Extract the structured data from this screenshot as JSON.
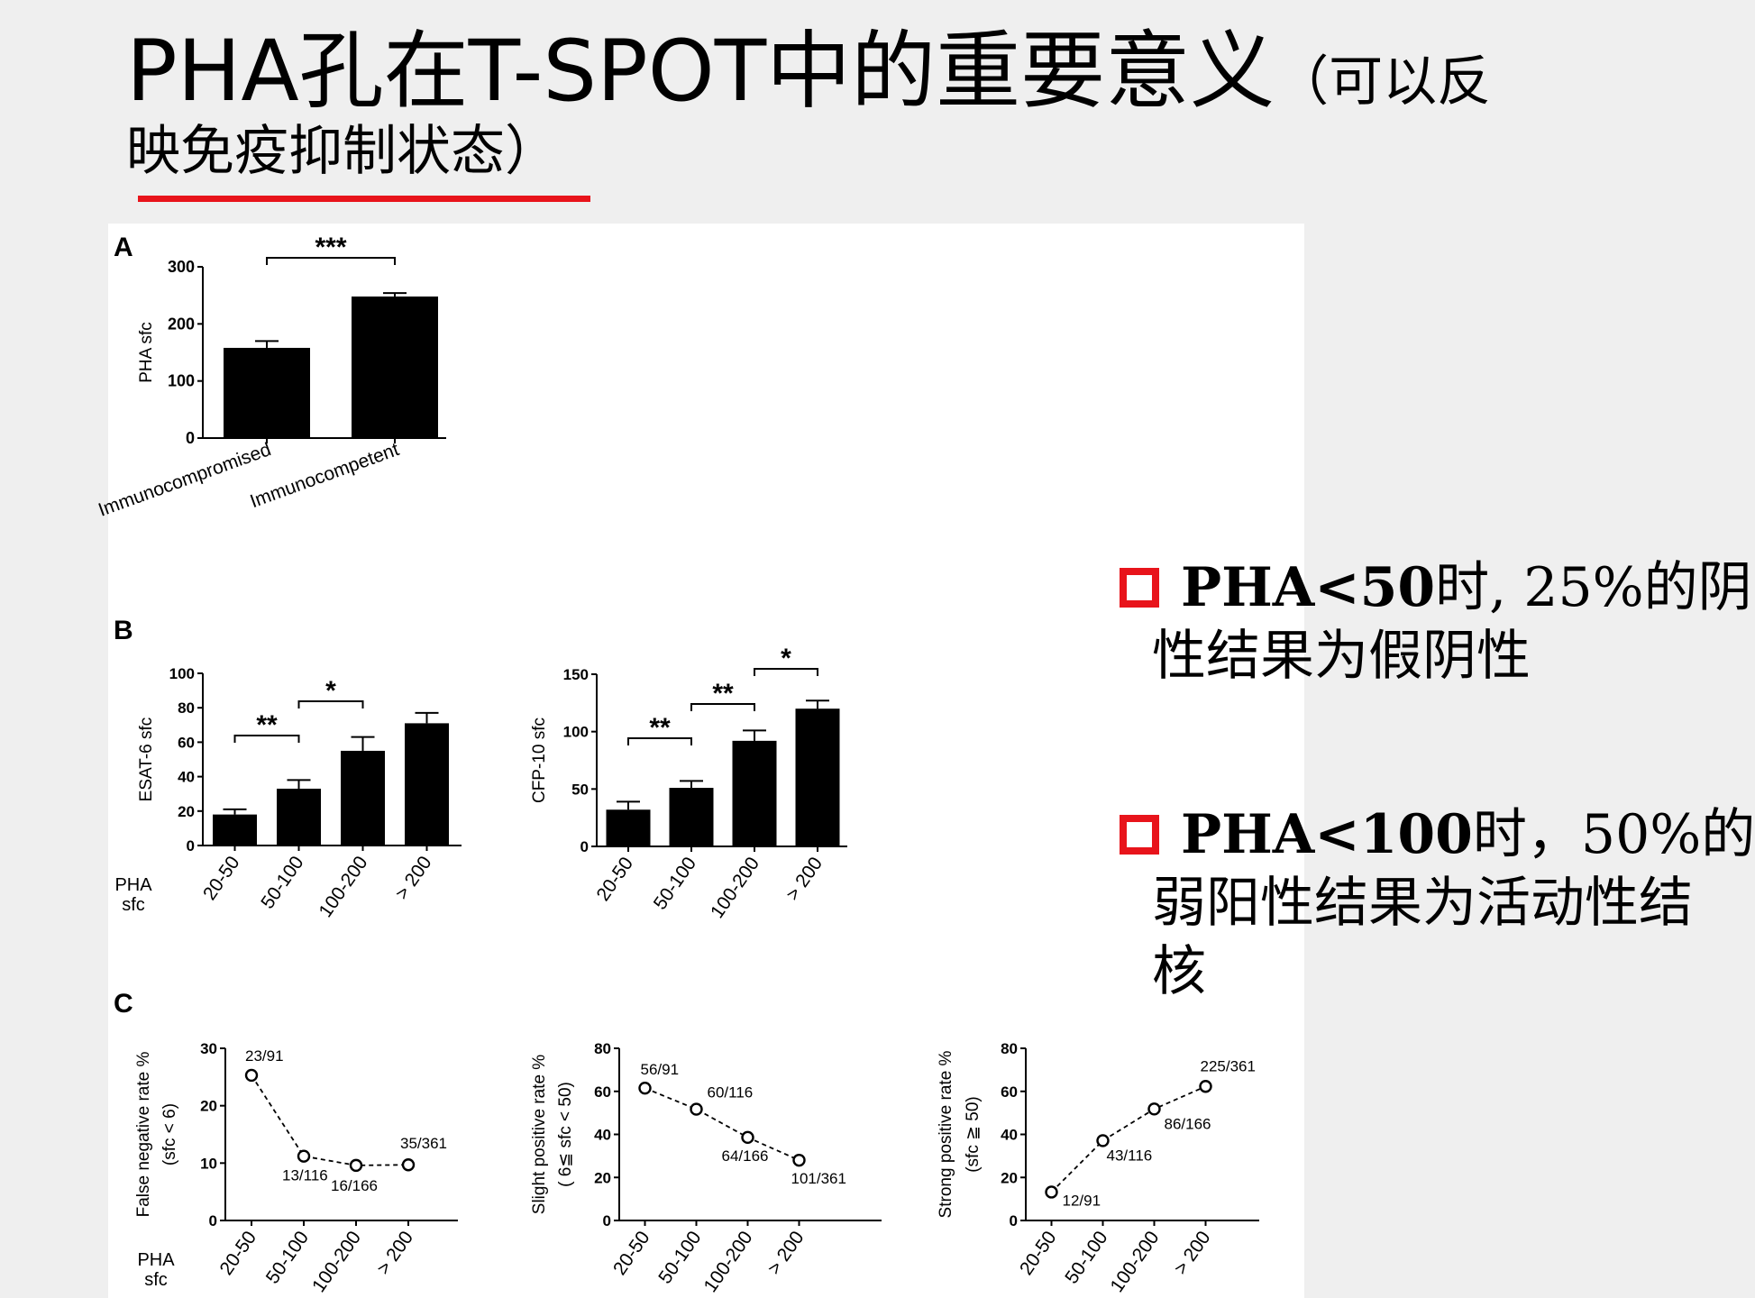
{
  "slide": {
    "title_line1": "PHA孔在T-SPOT中的重要意义",
    "title_suffix": "（可以反",
    "title_line2": "映免疫抑制状态）",
    "accent_color": "#e8141b"
  },
  "bullets": [
    {
      "bold": "PHA<50",
      "first_line": "时, 25%的阴",
      "rest": "性结果为假阴性"
    },
    {
      "bold": "PHA<100",
      "first_line": "时，50%的",
      "rest": "弱阳性结果为活动性结核"
    }
  ],
  "chart_data": [
    {
      "panel": "A",
      "type": "bar",
      "ylabel": "PHA sfc",
      "ylim": [
        0,
        300
      ],
      "yticks": [
        0,
        100,
        200,
        300
      ],
      "categories": [
        "Immunocompromised",
        "Immunocompetent"
      ],
      "values": [
        158,
        248
      ],
      "errors": [
        12,
        6
      ],
      "significance": [
        {
          "from": 0,
          "to": 1,
          "label": "***"
        }
      ]
    },
    {
      "panel": "B",
      "type": "bar",
      "ylabel": "ESAT-6 sfc",
      "xlabel": "PHA sfc",
      "xlabel_lines": [
        "PHA",
        "sfc"
      ],
      "ylim": [
        0,
        100
      ],
      "yticks": [
        0,
        20,
        40,
        60,
        80,
        100
      ],
      "categories": [
        "20-50",
        "50-100",
        "100-200",
        "> 200"
      ],
      "values": [
        18,
        33,
        55,
        71
      ],
      "errors": [
        3,
        5,
        8,
        6
      ],
      "significance": [
        {
          "from": 0,
          "to": 1,
          "label": "**"
        },
        {
          "from": 1,
          "to": 2,
          "label": "*"
        }
      ]
    },
    {
      "panel": "B",
      "type": "bar",
      "ylabel": "CFP-10 sfc",
      "ylim": [
        0,
        150
      ],
      "yticks": [
        0,
        50,
        100,
        150
      ],
      "categories": [
        "20-50",
        "50-100",
        "100-200",
        "> 200"
      ],
      "values": [
        32,
        51,
        92,
        120
      ],
      "errors": [
        7,
        6,
        9,
        7
      ],
      "significance": [
        {
          "from": 0,
          "to": 1,
          "label": "**"
        },
        {
          "from": 1,
          "to": 2,
          "label": "**"
        },
        {
          "from": 2,
          "to": 3,
          "label": "*"
        }
      ]
    },
    {
      "panel": "C",
      "type": "line",
      "ylabel": "False negative rate %",
      "ylabel2": "(sfc < 6)",
      "xlabel": "PHA sfc",
      "xlabel_lines": [
        "PHA",
        "sfc"
      ],
      "ylim": [
        0,
        30
      ],
      "yticks": [
        0,
        10,
        20,
        30
      ],
      "categories": [
        "20-50",
        "50-100",
        "100-200",
        "> 200"
      ],
      "values": [
        25.3,
        11.2,
        9.6,
        9.7
      ],
      "point_labels": [
        "23/91",
        "13/116",
        "16/166",
        "35/361"
      ]
    },
    {
      "panel": "C",
      "type": "line",
      "ylabel": "Slight positive rate %",
      "ylabel2": "( 6≦ sfc < 50)",
      "ylim": [
        0,
        80
      ],
      "yticks": [
        0,
        20,
        40,
        60,
        80
      ],
      "categories": [
        "20-50",
        "50-100",
        "100-200",
        "> 200"
      ],
      "values": [
        61.5,
        51.7,
        38.6,
        28.0
      ],
      "point_labels": [
        "56/91",
        "60/116",
        "64/166",
        "101/361"
      ]
    },
    {
      "panel": "C",
      "type": "line",
      "ylabel": "Strong positive rate %",
      "ylabel2": "(sfc ≧ 50)",
      "ylim": [
        0,
        80
      ],
      "yticks": [
        0,
        20,
        40,
        60,
        80
      ],
      "categories": [
        "20-50",
        "50-100",
        "100-200",
        "> 200"
      ],
      "values": [
        13.2,
        37.1,
        51.8,
        62.3
      ],
      "point_labels": [
        "12/91",
        "43/116",
        "86/166",
        "225/361"
      ]
    }
  ]
}
